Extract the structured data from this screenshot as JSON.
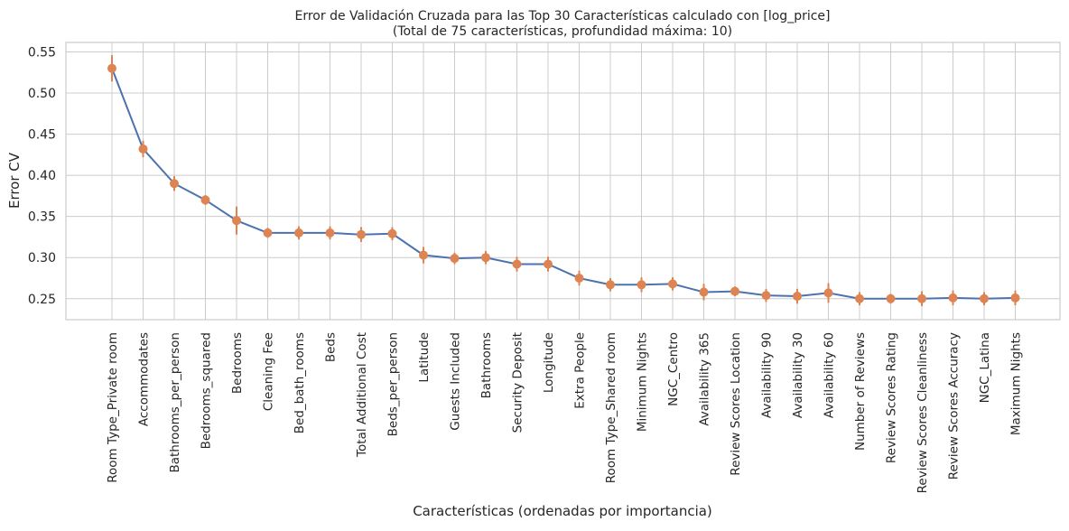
{
  "chart_data": {
    "type": "line",
    "title_line1": "Error de Validación Cruzada para las Top 30 Características calculado con [log_price]",
    "title_line2": "(Total de 75 características, profundidad máxima: 10)",
    "xlabel": "Características (ordenadas por importancia)",
    "ylabel": "Error CV",
    "ylim": [
      0.2245,
      0.5615
    ],
    "yticks": [
      "0.25",
      "0.30",
      "0.35",
      "0.40",
      "0.45",
      "0.50",
      "0.55"
    ],
    "grid": true,
    "colors": {
      "line": "#4c72b0",
      "marker": "#dd8452",
      "grid": "#cccccc",
      "axes": "#cccccc"
    },
    "categories": [
      "Room Type_Private room",
      "Accommodates",
      "Bathrooms_per_person",
      "Bedrooms_squared",
      "Bedrooms",
      "Cleaning Fee",
      "Bed_bath_rooms",
      "Beds",
      "Total Additional Cost",
      "Beds_per_person",
      "Latitude",
      "Guests Included",
      "Bathrooms",
      "Security Deposit",
      "Longitude",
      "Extra People",
      "Room Type_Shared room",
      "Minimum Nights",
      "NGC_Centro",
      "Availability 365",
      "Review Scores Location",
      "Availability 90",
      "Availability 30",
      "Availability 60",
      "Number of Reviews",
      "Review Scores Rating",
      "Review Scores Cleanliness",
      "Review Scores Accuracy",
      "NGC_Latina",
      "Maximum Nights"
    ],
    "values": [
      0.53,
      0.432,
      0.39,
      0.37,
      0.345,
      0.33,
      0.33,
      0.33,
      0.328,
      0.329,
      0.303,
      0.299,
      0.3,
      0.292,
      0.292,
      0.275,
      0.267,
      0.267,
      0.268,
      0.258,
      0.259,
      0.254,
      0.253,
      0.257,
      0.25,
      0.25,
      0.25,
      0.251,
      0.25,
      0.251
    ],
    "errors": [
      0.016,
      0.01,
      0.009,
      0.006,
      0.017,
      0.006,
      0.008,
      0.008,
      0.009,
      0.008,
      0.01,
      0.007,
      0.008,
      0.009,
      0.009,
      0.009,
      0.008,
      0.009,
      0.008,
      0.01,
      0.006,
      0.008,
      0.009,
      0.012,
      0.008,
      0.006,
      0.009,
      0.009,
      0.008,
      0.009
    ]
  }
}
